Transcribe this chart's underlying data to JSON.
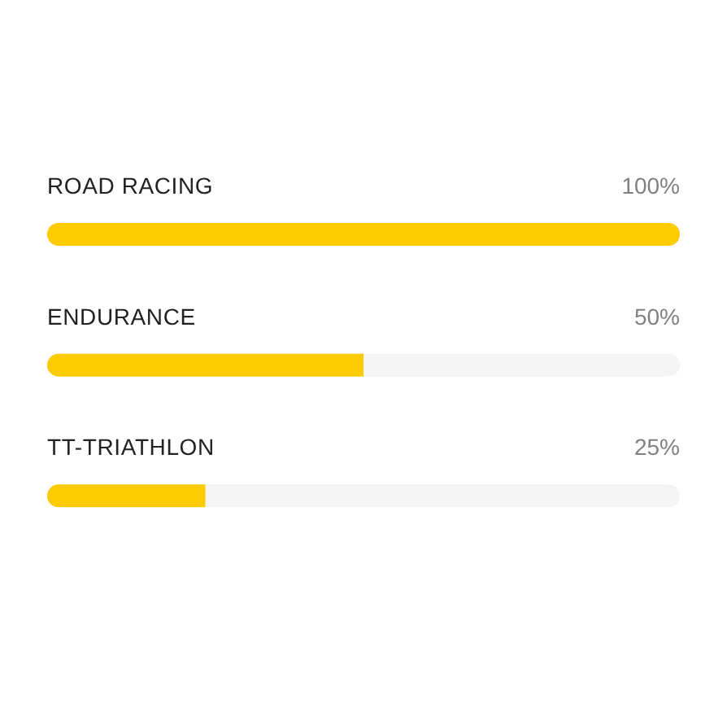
{
  "chart_data": {
    "type": "bar",
    "orientation": "horizontal",
    "categories": [
      "ROAD RACING",
      "ENDURANCE",
      "TT-TRIATHLON"
    ],
    "values": [
      100,
      50,
      25
    ],
    "color": "#fecb00",
    "xlim": [
      0,
      100
    ],
    "value_labels": [
      "100%",
      "50%",
      "25%"
    ],
    "tick_labels": "y"
  }
}
